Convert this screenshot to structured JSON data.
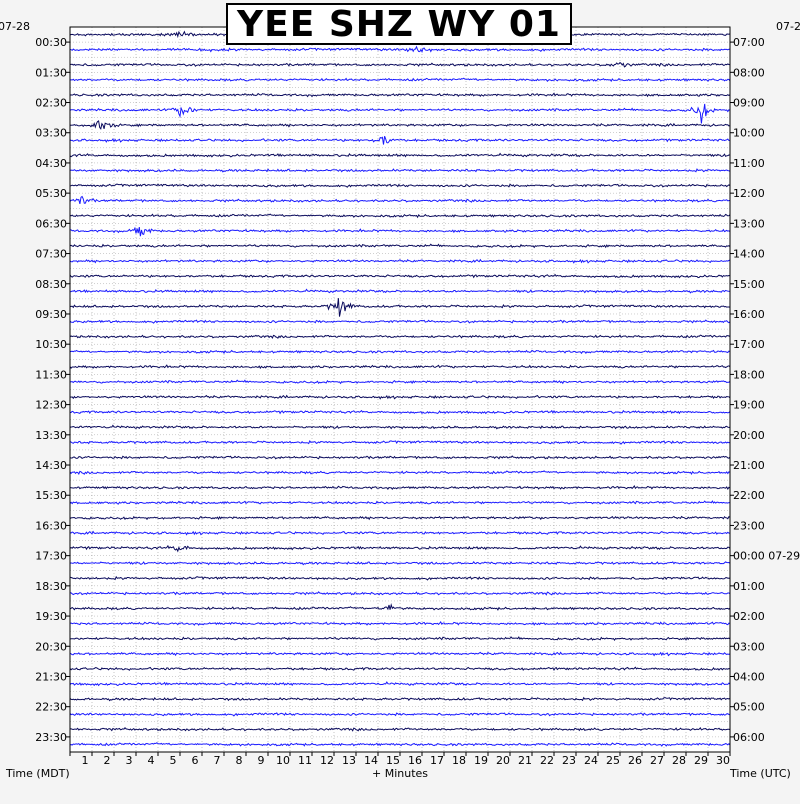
{
  "title": "YEE SHZ WY 01",
  "labels": {
    "left_axis": "Time (MDT)",
    "right_axis": "Time (UTC)",
    "bottom_axis": "+ Minutes",
    "left_date": "07-28",
    "right_date": "07-2",
    "utc_date_change": "07-29"
  },
  "colors": {
    "trace_dark": "#0a0a5c",
    "trace_blue": "#1a1aff",
    "trace_red": "#ff0000",
    "grid": "#8c8c8c",
    "plot_bg": "#ffffff",
    "page_bg": "#f4f4f4"
  },
  "chart_data": {
    "type": "line",
    "title": "YEE SHZ WY 01",
    "subtype": "helicorder",
    "xlabel": "+ Minutes",
    "xlim": [
      0,
      30
    ],
    "x_ticks": [
      "1",
      "2",
      "3",
      "4",
      "5",
      "6",
      "7",
      "8",
      "9",
      "10",
      "11",
      "12",
      "13",
      "14",
      "15",
      "16",
      "17",
      "18",
      "19",
      "20",
      "21",
      "22",
      "23",
      "24",
      "25",
      "26",
      "27",
      "28",
      "29",
      "30"
    ],
    "ylabel_left": "Time (MDT)",
    "ylabel_right": "Time (UTC)",
    "left_ticks": [
      "00:30",
      "01:30",
      "02:30",
      "03:30",
      "04:30",
      "05:30",
      "06:30",
      "07:30",
      "08:30",
      "09:30",
      "10:30",
      "11:30",
      "12:30",
      "13:30",
      "14:30",
      "15:30",
      "16:30",
      "17:30",
      "18:30",
      "19:30",
      "20:30",
      "21:30",
      "22:30",
      "23:30"
    ],
    "right_ticks": [
      "07:00",
      "08:00",
      "09:00",
      "10:00",
      "11:00",
      "12:00",
      "13:00",
      "14:00",
      "15:00",
      "16:00",
      "17:00",
      "18:00",
      "19:00",
      "20:00",
      "21:00",
      "22:00",
      "23:00",
      "00:00 07-29",
      "01:00",
      "02:00",
      "03:00",
      "04:00",
      "05:00",
      "06:00"
    ],
    "rows": 48,
    "minutes_per_row": 30,
    "series": [
      {
        "color": "#0a0a5c",
        "pattern": "even rows"
      },
      {
        "color": "#1a1aff",
        "pattern": "odd rows"
      },
      {
        "color": "#ff0000",
        "pattern": "clipped peaks"
      }
    ],
    "activity": [
      1,
      1,
      1,
      1,
      1,
      1,
      1,
      1,
      1,
      1,
      1,
      1,
      1,
      1,
      1,
      1,
      1,
      1,
      1,
      1,
      1,
      1,
      1,
      1,
      1,
      1,
      1,
      1,
      1,
      1,
      1,
      1,
      1,
      1,
      1,
      1,
      1,
      1,
      1,
      1,
      1,
      1,
      1,
      1,
      1,
      1,
      1,
      1
    ],
    "events": [
      {
        "row": 0,
        "minute": 5.0,
        "amplitude": 1.2
      },
      {
        "row": 1,
        "minute": 15.8,
        "amplitude": 1.5
      },
      {
        "row": 2,
        "minute": 25.0,
        "amplitude": 1.0
      },
      {
        "row": 5,
        "minute": 5.2,
        "amplitude": 2.4
      },
      {
        "row": 5,
        "minute": 28.7,
        "amplitude": 3.0
      },
      {
        "row": 6,
        "minute": 1.5,
        "amplitude": 3.5
      },
      {
        "row": 7,
        "minute": 14.3,
        "amplitude": 1.8
      },
      {
        "row": 11,
        "minute": 0.5,
        "amplitude": 1.5
      },
      {
        "row": 13,
        "minute": 3.2,
        "amplitude": 1.8
      },
      {
        "row": 18,
        "minute": 12.3,
        "amplitude": 3.5
      },
      {
        "row": 34,
        "minute": 5.0,
        "amplitude": 1.2
      },
      {
        "row": 38,
        "minute": 14.5,
        "amplitude": 1.5
      }
    ]
  }
}
